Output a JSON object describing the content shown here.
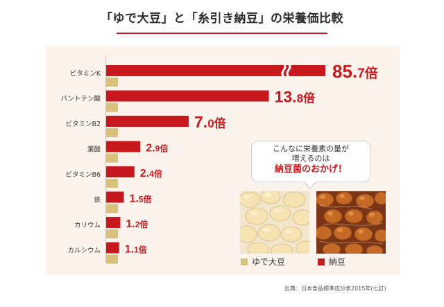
{
  "title": "「ゆで大豆」と「糸引き納豆」の栄養価比較",
  "chart_data": {
    "type": "bar",
    "orientation": "horizontal",
    "categories": [
      "ビタミンK",
      "パントテン酸",
      "ビタミンB2",
      "葉酸",
      "ビタミンB6",
      "鉄",
      "カリウム",
      "カルシウム"
    ],
    "series": [
      {
        "name": "ゆで大豆",
        "color": "#d8c17a",
        "values": [
          1,
          1,
          1,
          1,
          1,
          1,
          1,
          1
        ]
      },
      {
        "name": "納豆",
        "color": "#c8191e",
        "values": [
          85.7,
          13.8,
          7.0,
          2.9,
          2.4,
          1.5,
          1.2,
          1.1
        ]
      }
    ],
    "value_labels": [
      {
        "num": "85.",
        "dec": "7",
        "unit": "倍"
      },
      {
        "num": "13.",
        "dec": "8",
        "unit": "倍"
      },
      {
        "num": "7.",
        "dec": "0",
        "unit": "倍"
      },
      {
        "num": "2.",
        "dec": "9",
        "unit": "倍"
      },
      {
        "num": "2.",
        "dec": "4",
        "unit": "倍"
      },
      {
        "num": "1.",
        "dec": "5",
        "unit": "倍"
      },
      {
        "num": "1.",
        "dec": "2",
        "unit": "倍"
      },
      {
        "num": "1.",
        "dec": "1",
        "unit": "倍"
      }
    ],
    "axis_break_on": "ビタミンK",
    "legend_placement": "bottom-right",
    "grid": false
  },
  "callout": {
    "line1": "こんなに栄養素の量が",
    "line2": "増えるのは",
    "line3": "納豆菌のおかげ！"
  },
  "legend": {
    "soy": "ゆで大豆",
    "natto": "納豆"
  },
  "source": "出典：日本食品標準成分表2015年(七訂)"
}
